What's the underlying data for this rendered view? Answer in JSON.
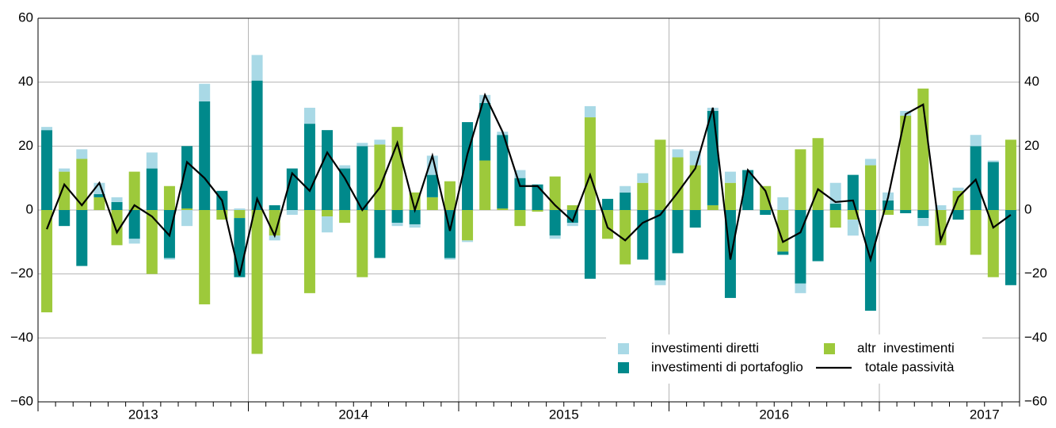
{
  "chart_data": {
    "type": "bar",
    "categories": [
      null,
      null,
      null,
      null,
      null,
      null,
      null,
      null,
      null,
      null,
      null,
      null,
      null,
      null,
      null,
      null,
      null,
      null,
      null,
      null,
      null,
      null,
      null,
      null,
      null,
      null,
      null,
      null,
      null,
      null,
      null,
      null,
      null,
      null,
      null,
      null,
      null,
      null,
      null,
      null,
      null,
      null,
      null,
      null,
      null,
      null,
      null,
      null,
      null,
      null,
      null,
      null,
      null,
      null,
      null,
      null
    ],
    "x_labels": [
      "2013",
      "2014",
      "2015",
      "2016",
      "2017"
    ],
    "series": [
      {
        "name": "investimenti diretti",
        "color": "#a9d9e6",
        "values": [
          1,
          1,
          3,
          3.5,
          1.5,
          -1.5,
          5,
          -0.5,
          -5,
          5.5,
          0,
          0.5,
          8,
          -1.5,
          -1.5,
          5,
          -5,
          1,
          1,
          1.5,
          -1,
          -1,
          6,
          -0.5,
          -0.5,
          2.5,
          1,
          2.5,
          0,
          -1,
          -1,
          3.5,
          0,
          2,
          3,
          -1.5,
          2.5,
          4.5,
          1,
          3.5,
          0,
          0,
          4,
          -3,
          0,
          6.5,
          -5,
          2,
          2.5,
          1.5,
          -2.5,
          1.5,
          1,
          3.5,
          0.5,
          0
        ]
      },
      {
        "name": "investimenti di portafoglio",
        "color": "#00898b",
        "values": [
          25,
          -5,
          -17.5,
          1,
          2.5,
          -9,
          13,
          -15,
          19.5,
          34,
          6,
          -18.5,
          40.5,
          1.5,
          13,
          27,
          25,
          13,
          20,
          -15,
          -4,
          -4.5,
          7,
          -15,
          27.5,
          18,
          23,
          10,
          8,
          -8,
          -4,
          -21.5,
          3.5,
          5.5,
          -15.5,
          -22,
          -13.5,
          -5.5,
          29.5,
          -27.5,
          12.5,
          -1.5,
          -1,
          -23,
          -16,
          2,
          11,
          -31.5,
          3,
          -1,
          -2.5,
          0,
          -3,
          20,
          15,
          -23.5
        ]
      },
      {
        "name": "altr  investimenti",
        "color": "#9dc93b",
        "values": [
          -32,
          12,
          16,
          4,
          -11,
          12,
          -20,
          7.5,
          0.5,
          -29.5,
          -3,
          -2.5,
          -45,
          -8,
          0,
          -26,
          -2,
          -4,
          -21,
          20.5,
          26,
          5.5,
          4,
          9,
          -9.5,
          15.5,
          0.5,
          -5,
          -0.5,
          10.5,
          1.5,
          29,
          -9,
          -17,
          8.5,
          22,
          16.5,
          14,
          1.5,
          8.5,
          0,
          7.5,
          -13,
          19,
          22.5,
          -5.5,
          -3,
          14,
          -1.5,
          29.5,
          38,
          -11,
          6,
          -14,
          -21,
          22
        ]
      },
      {
        "name": "totale passività",
        "type": "line",
        "color": "#000000",
        "values": [
          -6,
          8,
          1.5,
          8.5,
          -7,
          1.5,
          -2,
          -8,
          15,
          10,
          3,
          -20.5,
          3.5,
          -8,
          11.5,
          6,
          18,
          10,
          0,
          7,
          21,
          0,
          17,
          -6.5,
          17.5,
          36,
          24.5,
          7.5,
          7.5,
          1.5,
          -3.5,
          11,
          -5.5,
          -9.5,
          -4,
          -1.5,
          5.5,
          13,
          32,
          -15.5,
          12.5,
          6,
          -10,
          -7,
          6.5,
          2.5,
          3,
          -15.5,
          4,
          30,
          33,
          -9.5,
          4,
          9.5,
          -5.5,
          -1.5
        ]
      }
    ],
    "ylim": [
      -60,
      60
    ],
    "yticks": [
      {
        "value": -60,
        "label": "−60"
      },
      {
        "value": -40,
        "label": "−40"
      },
      {
        "value": -20,
        "label": "−20"
      },
      0,
      20,
      40,
      60
    ],
    "grid": true
  }
}
